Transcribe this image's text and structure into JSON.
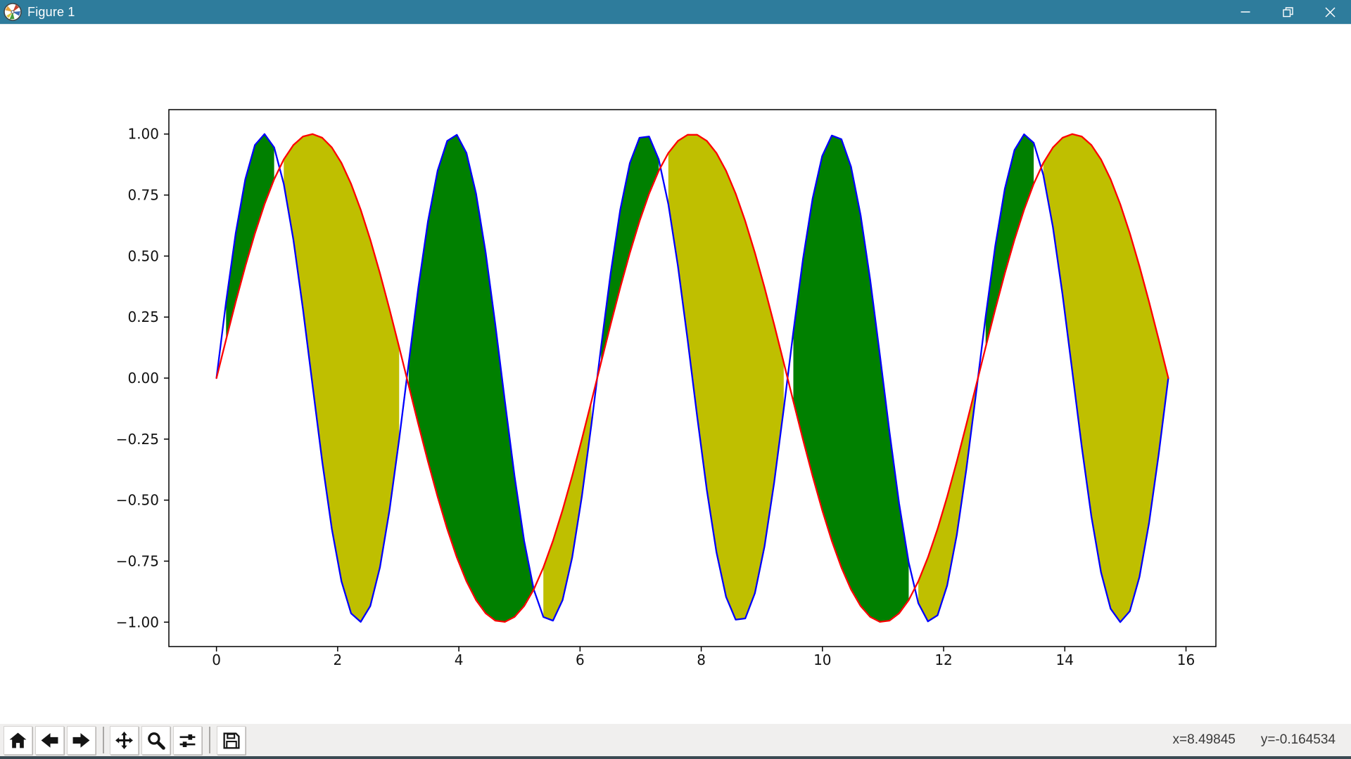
{
  "window": {
    "title": "Figure 1",
    "colors": {
      "titlebar": "#2e7c9c",
      "titlebar_text": "#ffffff",
      "bottom_strip": "#3b4a53",
      "toolbar_bg": "#f0efee"
    },
    "controls": {
      "minimize": "minimize",
      "restore": "restore-down",
      "close": "close"
    }
  },
  "toolbar": {
    "buttons": [
      {
        "id": "home"
      },
      {
        "id": "back"
      },
      {
        "id": "forward"
      },
      {
        "id": "pan"
      },
      {
        "id": "zoom"
      },
      {
        "id": "subplots"
      },
      {
        "id": "save"
      }
    ],
    "readout": {
      "x": "x=8.49845",
      "y": "y=-0.164534"
    }
  },
  "chart_data": {
    "type": "line",
    "title": "",
    "xlabel": "",
    "ylabel": "",
    "grid": false,
    "legend_position": "none",
    "xlim": [
      -0.7853981633974483,
      16.493361431346415
    ],
    "ylim": [
      -1.1,
      1.1
    ],
    "sampling": {
      "start": 0,
      "stop": 15.707963267948966,
      "num": 100
    },
    "series": [
      {
        "name": "y1",
        "label": "sin(2x)",
        "fn": "sin",
        "freq": 2,
        "color": "#0000ff"
      },
      {
        "name": "y2",
        "label": "sin(x)",
        "fn": "sin",
        "freq": 1,
        "color": "#ff0000"
      }
    ],
    "fills": [
      {
        "name": "fill-green",
        "color": "#008000",
        "where": "y1>y2"
      },
      {
        "name": "fill-yellow",
        "color": "#bfbf00",
        "where": "y2>=y1"
      }
    ],
    "xticks": {
      "values": [
        0,
        2,
        4,
        6,
        8,
        10,
        12,
        14,
        16
      ],
      "labels": [
        "0",
        "2",
        "4",
        "6",
        "8",
        "10",
        "12",
        "14",
        "16"
      ]
    },
    "yticks": {
      "values": [
        -1.0,
        -0.75,
        -0.5,
        -0.25,
        0.0,
        0.25,
        0.5,
        0.75,
        1.0
      ],
      "labels": [
        "−1.00",
        "−0.75",
        "−0.50",
        "−0.25",
        "0.00",
        "0.25",
        "0.50",
        "0.75",
        "1.00"
      ]
    }
  }
}
